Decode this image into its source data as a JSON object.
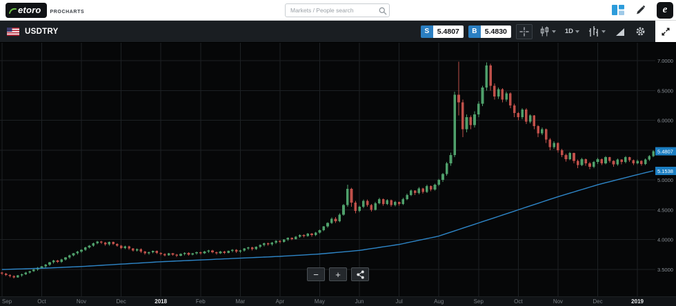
{
  "header": {
    "logo_text": "etoro",
    "logo_subtitle": "PROCHARTS",
    "search_placeholder": "Markets / People search"
  },
  "toolbar": {
    "symbol": "USDTRY",
    "sell_label": "S",
    "sell_price": "5.4807",
    "buy_label": "B",
    "buy_price": "5.4830",
    "timeframe": "1D"
  },
  "zoom_controls": {
    "zoom_out": "−",
    "zoom_in": "+"
  },
  "icons": [
    "etoro-logo-swoosh",
    "search-icon",
    "grid-icon",
    "pencil-icon",
    "etoro-app-icon",
    "us-flag-icon",
    "crosshair-icon",
    "candlestick-type-icon",
    "chevron-down-icon",
    "ohlc-bars-icon",
    "signal-icon",
    "gear-icon",
    "expand-icon",
    "zoom-out-icon",
    "zoom-in-icon",
    "share-icon"
  ],
  "chart_data": {
    "type": "candlestick",
    "symbol": "USDTRY",
    "timeframe": "1D",
    "ylim": [
      3.05,
      7.3
    ],
    "grid": true,
    "y_ticks": [
      "7.0000",
      "6.5000",
      "6.0000",
      "5.5000",
      "5.0000",
      "4.5000",
      "4.0000",
      "3.5000"
    ],
    "x_ticks": [
      {
        "i": 0,
        "label": "Sep"
      },
      {
        "i": 10,
        "label": "Oct"
      },
      {
        "i": 20,
        "label": "Nov"
      },
      {
        "i": 30,
        "label": "Dec"
      },
      {
        "i": 40,
        "label": "2018",
        "bright": true
      },
      {
        "i": 50,
        "label": "Feb"
      },
      {
        "i": 60,
        "label": "Mar"
      },
      {
        "i": 70,
        "label": "Apr"
      },
      {
        "i": 80,
        "label": "May"
      },
      {
        "i": 90,
        "label": "Jun"
      },
      {
        "i": 100,
        "label": "Jul"
      },
      {
        "i": 110,
        "label": "Aug"
      },
      {
        "i": 120,
        "label": "Sep"
      },
      {
        "i": 130,
        "label": "Oct"
      },
      {
        "i": 140,
        "label": "Nov"
      },
      {
        "i": 150,
        "label": "Dec"
      },
      {
        "i": 160,
        "label": "2019",
        "bright": true
      }
    ],
    "price_badges": [
      "5.4807",
      "5.1538"
    ],
    "ma": {
      "name": "moving-average",
      "anchors": [
        [
          0,
          3.5
        ],
        [
          10,
          3.52
        ],
        [
          20,
          3.55
        ],
        [
          30,
          3.59
        ],
        [
          40,
          3.63
        ],
        [
          50,
          3.66
        ],
        [
          60,
          3.69
        ],
        [
          70,
          3.72
        ],
        [
          80,
          3.76
        ],
        [
          90,
          3.82
        ],
        [
          100,
          3.92
        ],
        [
          110,
          4.06
        ],
        [
          120,
          4.28
        ],
        [
          130,
          4.5
        ],
        [
          140,
          4.72
        ],
        [
          150,
          4.92
        ],
        [
          160,
          5.09
        ],
        [
          164,
          5.154
        ]
      ]
    },
    "colors": {
      "up": "#4fa06b",
      "down": "#c0504a",
      "ma": "#2e86c8",
      "grid": "#1d2124",
      "axis_text": "#8b9299",
      "badge": "#1b7ec2",
      "bg": "#060708"
    },
    "candles": [
      [
        3.45,
        3.46,
        3.41,
        3.43
      ],
      [
        3.43,
        3.44,
        3.39,
        3.41
      ],
      [
        3.41,
        3.42,
        3.37,
        3.39
      ],
      [
        3.39,
        3.4,
        3.35,
        3.37
      ],
      [
        3.37,
        3.41,
        3.36,
        3.4
      ],
      [
        3.4,
        3.43,
        3.38,
        3.42
      ],
      [
        3.42,
        3.46,
        3.41,
        3.45
      ],
      [
        3.45,
        3.48,
        3.43,
        3.47
      ],
      [
        3.47,
        3.51,
        3.46,
        3.5
      ],
      [
        3.5,
        3.54,
        3.48,
        3.53
      ],
      [
        3.53,
        3.56,
        3.51,
        3.55
      ],
      [
        3.55,
        3.59,
        3.53,
        3.58
      ],
      [
        3.58,
        3.63,
        3.56,
        3.62
      ],
      [
        3.62,
        3.66,
        3.6,
        3.65
      ],
      [
        3.65,
        3.66,
        3.61,
        3.63
      ],
      [
        3.63,
        3.68,
        3.61,
        3.67
      ],
      [
        3.67,
        3.71,
        3.65,
        3.7
      ],
      [
        3.7,
        3.75,
        3.68,
        3.74
      ],
      [
        3.74,
        3.78,
        3.72,
        3.77
      ],
      [
        3.77,
        3.81,
        3.75,
        3.8
      ],
      [
        3.8,
        3.84,
        3.78,
        3.83
      ],
      [
        3.83,
        3.88,
        3.81,
        3.87
      ],
      [
        3.87,
        3.91,
        3.85,
        3.9
      ],
      [
        3.9,
        3.95,
        3.88,
        3.94
      ],
      [
        3.94,
        3.98,
        3.92,
        3.97
      ],
      [
        3.97,
        3.98,
        3.93,
        3.95
      ],
      [
        3.95,
        3.96,
        3.9,
        3.92
      ],
      [
        3.92,
        3.97,
        3.9,
        3.96
      ],
      [
        3.96,
        3.97,
        3.91,
        3.93
      ],
      [
        3.93,
        3.94,
        3.88,
        3.9
      ],
      [
        3.9,
        3.91,
        3.84,
        3.86
      ],
      [
        3.86,
        3.9,
        3.84,
        3.89
      ],
      [
        3.89,
        3.9,
        3.83,
        3.85
      ],
      [
        3.85,
        3.86,
        3.8,
        3.82
      ],
      [
        3.82,
        3.85,
        3.8,
        3.84
      ],
      [
        3.84,
        3.85,
        3.78,
        3.8
      ],
      [
        3.8,
        3.81,
        3.75,
        3.77
      ],
      [
        3.77,
        3.8,
        3.75,
        3.79
      ],
      [
        3.79,
        3.82,
        3.77,
        3.81
      ],
      [
        3.81,
        3.82,
        3.76,
        3.78
      ],
      [
        3.78,
        3.79,
        3.74,
        3.76
      ],
      [
        3.76,
        3.77,
        3.72,
        3.74
      ],
      [
        3.74,
        3.78,
        3.73,
        3.77
      ],
      [
        3.77,
        3.78,
        3.73,
        3.75
      ],
      [
        3.75,
        3.76,
        3.71,
        3.73
      ],
      [
        3.73,
        3.77,
        3.72,
        3.76
      ],
      [
        3.76,
        3.79,
        3.74,
        3.78
      ],
      [
        3.78,
        3.79,
        3.73,
        3.75
      ],
      [
        3.75,
        3.78,
        3.74,
        3.77
      ],
      [
        3.77,
        3.8,
        3.75,
        3.79
      ],
      [
        3.79,
        3.8,
        3.75,
        3.77
      ],
      [
        3.77,
        3.81,
        3.76,
        3.8
      ],
      [
        3.8,
        3.83,
        3.78,
        3.82
      ],
      [
        3.82,
        3.83,
        3.77,
        3.79
      ],
      [
        3.79,
        3.8,
        3.75,
        3.77
      ],
      [
        3.77,
        3.81,
        3.76,
        3.8
      ],
      [
        3.8,
        3.81,
        3.76,
        3.78
      ],
      [
        3.78,
        3.82,
        3.77,
        3.81
      ],
      [
        3.81,
        3.84,
        3.79,
        3.83
      ],
      [
        3.83,
        3.84,
        3.78,
        3.8
      ],
      [
        3.8,
        3.83,
        3.78,
        3.82
      ],
      [
        3.82,
        3.86,
        3.8,
        3.85
      ],
      [
        3.85,
        3.88,
        3.83,
        3.87
      ],
      [
        3.87,
        3.88,
        3.82,
        3.84
      ],
      [
        3.84,
        3.89,
        3.83,
        3.88
      ],
      [
        3.88,
        3.92,
        3.86,
        3.91
      ],
      [
        3.91,
        3.95,
        3.89,
        3.94
      ],
      [
        3.94,
        3.95,
        3.9,
        3.92
      ],
      [
        3.92,
        3.96,
        3.9,
        3.95
      ],
      [
        3.95,
        3.99,
        3.93,
        3.98
      ],
      [
        3.98,
        3.99,
        3.94,
        3.96
      ],
      [
        3.96,
        4.01,
        3.95,
        4.0
      ],
      [
        4.0,
        4.04,
        3.98,
        4.03
      ],
      [
        4.03,
        4.04,
        3.99,
        4.01
      ],
      [
        4.01,
        4.06,
        4.0,
        4.05
      ],
      [
        4.05,
        4.09,
        4.03,
        4.08
      ],
      [
        4.08,
        4.09,
        4.04,
        4.06
      ],
      [
        4.06,
        4.11,
        4.05,
        4.1
      ],
      [
        4.1,
        4.11,
        4.05,
        4.08
      ],
      [
        4.08,
        4.13,
        4.06,
        4.12
      ],
      [
        4.12,
        4.17,
        4.1,
        4.16
      ],
      [
        4.16,
        4.23,
        4.14,
        4.22
      ],
      [
        4.22,
        4.29,
        4.2,
        4.28
      ],
      [
        4.28,
        4.37,
        4.26,
        4.35
      ],
      [
        4.35,
        4.38,
        4.28,
        4.31
      ],
      [
        4.31,
        4.44,
        4.29,
        4.42
      ],
      [
        4.42,
        4.6,
        4.4,
        4.58
      ],
      [
        4.58,
        4.92,
        4.55,
        4.85
      ],
      [
        4.85,
        4.87,
        4.55,
        4.62
      ],
      [
        4.62,
        4.65,
        4.44,
        4.48
      ],
      [
        4.48,
        4.57,
        4.46,
        4.55
      ],
      [
        4.55,
        4.67,
        4.53,
        4.65
      ],
      [
        4.65,
        4.67,
        4.55,
        4.58
      ],
      [
        4.58,
        4.6,
        4.47,
        4.5
      ],
      [
        4.5,
        4.63,
        4.49,
        4.61
      ],
      [
        4.61,
        4.7,
        4.59,
        4.68
      ],
      [
        4.68,
        4.69,
        4.57,
        4.6
      ],
      [
        4.6,
        4.68,
        4.58,
        4.66
      ],
      [
        4.66,
        4.67,
        4.55,
        4.58
      ],
      [
        4.58,
        4.65,
        4.56,
        4.63
      ],
      [
        4.63,
        4.64,
        4.57,
        4.6
      ],
      [
        4.6,
        4.7,
        4.58,
        4.68
      ],
      [
        4.68,
        4.77,
        4.66,
        4.75
      ],
      [
        4.75,
        4.84,
        4.73,
        4.82
      ],
      [
        4.82,
        4.83,
        4.75,
        4.78
      ],
      [
        4.78,
        4.88,
        4.76,
        4.86
      ],
      [
        4.86,
        4.87,
        4.77,
        4.8
      ],
      [
        4.8,
        4.92,
        4.78,
        4.9
      ],
      [
        4.9,
        4.91,
        4.81,
        4.84
      ],
      [
        4.84,
        4.94,
        4.82,
        4.92
      ],
      [
        4.92,
        5.02,
        4.9,
        5.0
      ],
      [
        5.0,
        5.12,
        4.97,
        5.1
      ],
      [
        5.1,
        5.3,
        5.07,
        5.28
      ],
      [
        5.28,
        5.46,
        5.24,
        5.42
      ],
      [
        5.42,
        6.48,
        5.38,
        6.43
      ],
      [
        6.43,
        6.98,
        6.08,
        6.3
      ],
      [
        6.3,
        6.35,
        5.72,
        5.85
      ],
      [
        5.85,
        6.1,
        5.8,
        6.05
      ],
      [
        6.05,
        6.08,
        5.85,
        5.92
      ],
      [
        5.92,
        6.15,
        5.88,
        6.1
      ],
      [
        6.1,
        6.32,
        6.05,
        6.28
      ],
      [
        6.28,
        6.58,
        6.24,
        6.55
      ],
      [
        6.55,
        6.97,
        6.5,
        6.92
      ],
      [
        6.92,
        6.95,
        6.5,
        6.58
      ],
      [
        6.58,
        6.62,
        6.35,
        6.4
      ],
      [
        6.4,
        6.55,
        6.36,
        6.52
      ],
      [
        6.52,
        6.54,
        6.3,
        6.35
      ],
      [
        6.35,
        6.48,
        6.31,
        6.45
      ],
      [
        6.45,
        6.47,
        6.2,
        6.25
      ],
      [
        6.25,
        6.28,
        6.05,
        6.12
      ],
      [
        6.12,
        6.14,
        6.0,
        6.05
      ],
      [
        6.05,
        6.2,
        6.02,
        6.18
      ],
      [
        6.18,
        6.2,
        5.94,
        5.98
      ],
      [
        5.98,
        6.1,
        5.95,
        6.08
      ],
      [
        6.08,
        6.09,
        5.85,
        5.9
      ],
      [
        5.9,
        5.92,
        5.72,
        5.78
      ],
      [
        5.78,
        5.88,
        5.75,
        5.85
      ],
      [
        5.85,
        5.86,
        5.62,
        5.68
      ],
      [
        5.68,
        5.7,
        5.5,
        5.55
      ],
      [
        5.55,
        5.65,
        5.52,
        5.62
      ],
      [
        5.62,
        5.63,
        5.46,
        5.5
      ],
      [
        5.5,
        5.52,
        5.38,
        5.42
      ],
      [
        5.42,
        5.44,
        5.31,
        5.35
      ],
      [
        5.35,
        5.47,
        5.33,
        5.45
      ],
      [
        5.45,
        5.46,
        5.28,
        5.32
      ],
      [
        5.32,
        5.34,
        5.2,
        5.25
      ],
      [
        5.25,
        5.37,
        5.23,
        5.35
      ],
      [
        5.35,
        5.36,
        5.24,
        5.28
      ],
      [
        5.28,
        5.3,
        5.18,
        5.22
      ],
      [
        5.22,
        5.32,
        5.2,
        5.3
      ],
      [
        5.3,
        5.37,
        5.27,
        5.35
      ],
      [
        5.35,
        5.36,
        5.25,
        5.28
      ],
      [
        5.28,
        5.4,
        5.26,
        5.38
      ],
      [
        5.38,
        5.39,
        5.29,
        5.32
      ],
      [
        5.32,
        5.33,
        5.22,
        5.26
      ],
      [
        5.26,
        5.36,
        5.24,
        5.34
      ],
      [
        5.34,
        5.35,
        5.26,
        5.3
      ],
      [
        5.3,
        5.4,
        5.28,
        5.38
      ],
      [
        5.38,
        5.39,
        5.3,
        5.33
      ],
      [
        5.33,
        5.34,
        5.25,
        5.28
      ],
      [
        5.28,
        5.34,
        5.26,
        5.32
      ],
      [
        5.32,
        5.33,
        5.24,
        5.27
      ],
      [
        5.27,
        5.36,
        5.25,
        5.34
      ],
      [
        5.34,
        5.42,
        5.32,
        5.4
      ],
      [
        5.4,
        5.5,
        5.38,
        5.4807
      ]
    ]
  }
}
